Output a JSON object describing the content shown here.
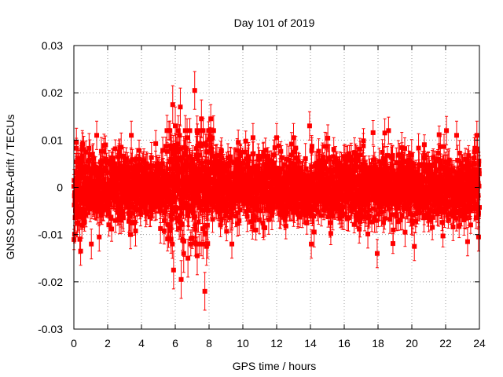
{
  "chart_data": {
    "type": "scatter",
    "title": "Day 101 of 2019",
    "xlabel": "GPS time / hours",
    "ylabel": "GNSS SOLERA-drift / TECUs",
    "xlim": [
      0,
      24
    ],
    "ylim": [
      -0.03,
      0.03
    ],
    "x_ticks": [
      "0",
      "2",
      "4",
      "6",
      "8",
      "10",
      "12",
      "14",
      "16",
      "18",
      "20",
      "22",
      "24"
    ],
    "y_ticks": [
      "-0.03",
      "-0.02",
      "-0.01",
      "0",
      "0.01",
      "0.02",
      "0.03"
    ],
    "grid": true,
    "marker": "square",
    "error_bars": true,
    "series_color": "#ff0000",
    "dense_noise": {
      "x_start": 0,
      "x_end": 24,
      "count": 2880,
      "note_units": "TECU",
      "typical_spread": 0.0035,
      "typical_error": 0.0025
    },
    "highlighted_points": [
      {
        "x": 0.05,
        "y": -0.0012,
        "err": 0.003
      },
      {
        "x": 0.15,
        "y": 0.0095,
        "err": 0.003
      },
      {
        "x": 0.2,
        "y": -0.0075,
        "err": 0.003
      },
      {
        "x": 0.35,
        "y": -0.011,
        "err": 0.003
      },
      {
        "x": 0.4,
        "y": -0.0135,
        "err": 0.003
      },
      {
        "x": 0.5,
        "y": 0.009,
        "err": 0.003
      },
      {
        "x": 1.35,
        "y": 0.011,
        "err": 0.003
      },
      {
        "x": 1.5,
        "y": -0.0105,
        "err": 0.003
      },
      {
        "x": 2.8,
        "y": 0.0085,
        "err": 0.003
      },
      {
        "x": 3.4,
        "y": 0.011,
        "err": 0.003
      },
      {
        "x": 3.35,
        "y": -0.01,
        "err": 0.003
      },
      {
        "x": 5.85,
        "y": 0.0175,
        "err": 0.004
      },
      {
        "x": 5.9,
        "y": -0.0175,
        "err": 0.004
      },
      {
        "x": 6.0,
        "y": 0.013,
        "err": 0.004
      },
      {
        "x": 6.3,
        "y": 0.017,
        "err": 0.004
      },
      {
        "x": 6.35,
        "y": -0.0195,
        "err": 0.004
      },
      {
        "x": 6.5,
        "y": -0.014,
        "err": 0.004
      },
      {
        "x": 6.7,
        "y": 0.0105,
        "err": 0.004
      },
      {
        "x": 6.75,
        "y": -0.015,
        "err": 0.004
      },
      {
        "x": 7.15,
        "y": 0.0205,
        "err": 0.004
      },
      {
        "x": 7.3,
        "y": -0.0145,
        "err": 0.004
      },
      {
        "x": 7.55,
        "y": 0.0145,
        "err": 0.004
      },
      {
        "x": 7.75,
        "y": -0.022,
        "err": 0.004
      },
      {
        "x": 7.85,
        "y": -0.0125,
        "err": 0.004
      },
      {
        "x": 8.1,
        "y": 0.0145,
        "err": 0.003
      },
      {
        "x": 9.35,
        "y": -0.012,
        "err": 0.003
      },
      {
        "x": 10.6,
        "y": 0.0105,
        "err": 0.003
      },
      {
        "x": 12.0,
        "y": 0.0105,
        "err": 0.003
      },
      {
        "x": 13.0,
        "y": 0.0105,
        "err": 0.003
      },
      {
        "x": 13.95,
        "y": 0.013,
        "err": 0.003
      },
      {
        "x": 14.05,
        "y": -0.012,
        "err": 0.003
      },
      {
        "x": 17.95,
        "y": -0.014,
        "err": 0.003
      },
      {
        "x": 18.4,
        "y": 0.0115,
        "err": 0.003
      },
      {
        "x": 19.6,
        "y": -0.0095,
        "err": 0.003
      },
      {
        "x": 20.15,
        "y": -0.0125,
        "err": 0.003
      },
      {
        "x": 22.05,
        "y": 0.012,
        "err": 0.003
      },
      {
        "x": 22.65,
        "y": 0.011,
        "err": 0.003
      },
      {
        "x": 23.3,
        "y": -0.0115,
        "err": 0.003
      },
      {
        "x": 23.7,
        "y": 0.0075,
        "err": 0.003
      },
      {
        "x": 23.85,
        "y": 0.011,
        "err": 0.003
      },
      {
        "x": 23.95,
        "y": -0.0105,
        "err": 0.003
      }
    ]
  }
}
